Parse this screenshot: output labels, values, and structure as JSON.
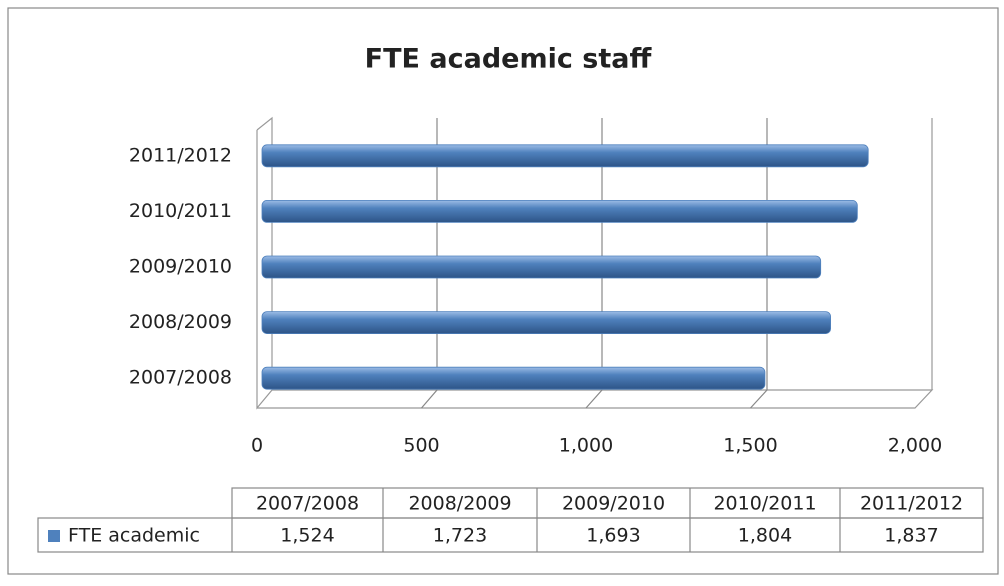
{
  "chart_data": {
    "type": "bar",
    "title": "FTE academic staff",
    "categories": [
      "2007/2008",
      "2008/2009",
      "2009/2010",
      "2010/2011",
      "2011/2012"
    ],
    "series": [
      {
        "name": "FTE academic",
        "color": "#4f81bd",
        "values": [
          1524,
          1723,
          1693,
          1804,
          1837
        ],
        "value_labels": [
          "1,524",
          "1,723",
          "1,693",
          "1,804",
          "1,837"
        ]
      }
    ],
    "xlim": [
      0,
      2000
    ],
    "xticks": [
      0,
      500,
      {
        "value": 1000,
        "label": "1,000"
      },
      {
        "value": 1500,
        "label": "1,500"
      },
      {
        "value": 2000,
        "label": "2,000"
      }
    ],
    "grid": true
  }
}
